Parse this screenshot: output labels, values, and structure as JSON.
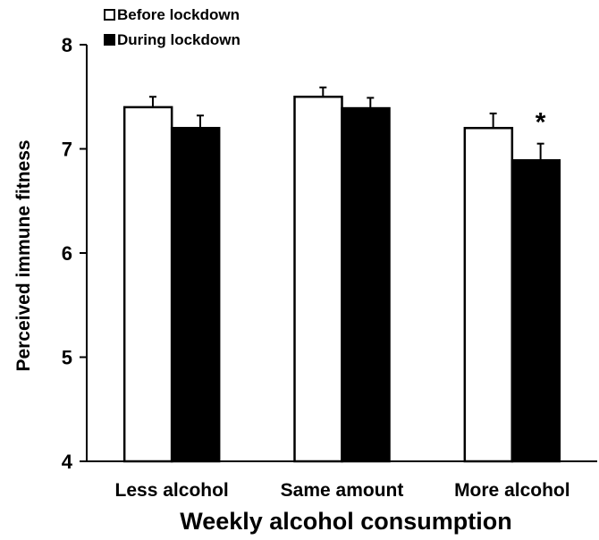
{
  "chart_data": {
    "type": "bar",
    "xlabel": "Weekly alcohol consumption",
    "ylabel": "Perceived immune fitness",
    "ylim": [
      4,
      8
    ],
    "yticks": [
      "4",
      "5",
      "6",
      "7",
      "8"
    ],
    "categories": [
      "Less alcohol",
      "Same amount",
      "More alcohol"
    ],
    "series": [
      {
        "name": "Before lockdown",
        "color": "#ffffff",
        "values": [
          7.4,
          7.5,
          7.2
        ],
        "errors": [
          0.1,
          0.09,
          0.14
        ]
      },
      {
        "name": "During lockdown",
        "color": "#000000",
        "values": [
          7.2,
          7.39,
          6.89
        ],
        "errors": [
          0.12,
          0.1,
          0.16
        ]
      }
    ],
    "annotations": [
      {
        "text": "*",
        "category": "More alcohol"
      }
    ],
    "legend_position": "top-left",
    "grid": false
  }
}
